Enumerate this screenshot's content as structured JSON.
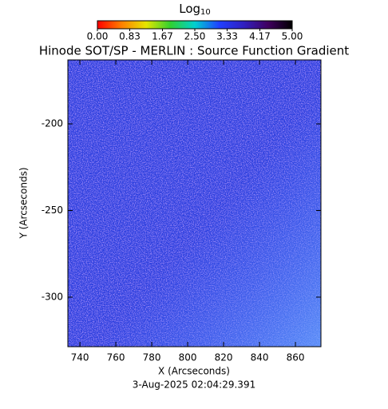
{
  "chart_data": {
    "type": "image",
    "title": "Hinode SOT/SP - MERLIN : Source Function Gradient",
    "xlabel": "X (Arcseconds)",
    "ylabel": "Y (Arcseconds)",
    "footer": "3-Aug-2025 02:04:29.391",
    "xlim": [
      733.3,
      874.2
    ],
    "xticks": [
      740,
      760,
      780,
      800,
      820,
      840,
      860
    ],
    "ylim": [
      -328.6,
      -163.1
    ],
    "yticks": [
      -200,
      -250,
      -300
    ],
    "colorbar": {
      "label": "Log",
      "label_sub": "10",
      "lim": [
        0,
        5
      ],
      "ticks": [
        {
          "value": 0,
          "label": "0.00"
        },
        0.83,
        1.67,
        {
          "value": 2.5,
          "label": "2.50"
        },
        3.33,
        4.17,
        {
          "value": 5,
          "label": "5.00"
        }
      ],
      "colors": [
        "#ff0000",
        "#ff8000",
        "#e6e600",
        "#30d030",
        "#00d0d0",
        "#2040ff",
        "#3020c0",
        "#400060",
        "#000000"
      ]
    }
  }
}
